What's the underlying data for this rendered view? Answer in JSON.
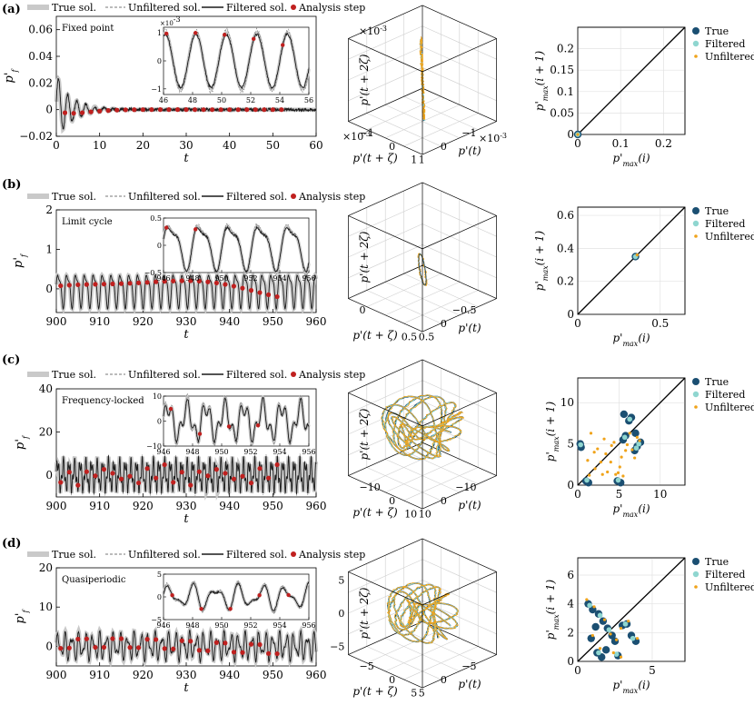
{
  "legend": {
    "true_sol": "True sol.",
    "unfiltered_sol": "Unfiltered sol.",
    "filtered_sol": "Filtered sol.",
    "analysis_step": "Analysis step"
  },
  "return_map_legend": {
    "true": "True",
    "filtered": "Filtered",
    "unfiltered": "Unfiltered"
  },
  "colors": {
    "true_band": "#c9c9c9",
    "filtered_line": "#1a1a1a",
    "unfiltered_line": "#777777",
    "analysis_dot": "#c0201f",
    "true_map": "#1b4f72",
    "filtered_map": "#8fd6d0",
    "unfiltered_map": "#f0a31a",
    "diagonal": "#000000"
  },
  "chart_data": [
    {
      "panel": "(a)",
      "type": "line",
      "annotation": "Fixed point",
      "title": "",
      "xlabel": "t",
      "ylabel": "p'_f",
      "xlim": [
        0,
        60
      ],
      "ylim": [
        -0.02,
        0.07
      ],
      "xticks": [
        "0",
        "10",
        "20",
        "30",
        "40",
        "50",
        "60"
      ],
      "yticks": [
        "-0.02",
        "0",
        "0.02",
        "0.04",
        "0.06"
      ],
      "signal": {
        "kind": "decay",
        "period": 2.1,
        "amplitude": 0.022,
        "decay_rate": 0.25,
        "offset": 0.0,
        "noise": 0.002
      },
      "analysis_steps_t": [
        2,
        4,
        6,
        8,
        10,
        12,
        14,
        16,
        18,
        20,
        22,
        24,
        26,
        28,
        30,
        32,
        34,
        36,
        38,
        40,
        42,
        44,
        46,
        48,
        50,
        52
      ],
      "inset": {
        "xlim": [
          46,
          56
        ],
        "ylim": [
          -1.2,
          1.2
        ],
        "xticks": [
          "46",
          "48",
          "50",
          "52",
          "54",
          "56"
        ],
        "yticks": [
          "-1",
          "0",
          "1"
        ],
        "multiplier": "×10^-3",
        "period": 2.1,
        "amplitude": 1.0,
        "analysis_steps_t": [
          46.2,
          48.2,
          50.2,
          52.2,
          54.2
        ]
      }
    },
    {
      "panel": "(b)",
      "type": "line",
      "annotation": "Limit cycle",
      "title": "",
      "xlabel": "t",
      "ylabel": "p'_f",
      "xlim": [
        900,
        960
      ],
      "ylim": [
        -0.6,
        2.0
      ],
      "xticks": [
        "900",
        "910",
        "920",
        "930",
        "940",
        "950",
        "960"
      ],
      "yticks": [
        "0",
        "1",
        "2"
      ],
      "signal": {
        "kind": "periodic",
        "period": 2.05,
        "amplitude": 0.38,
        "decay_rate": 0,
        "offset": 0.0,
        "noise": 0.01
      },
      "analysis_steps_t": [
        901,
        903,
        905,
        907,
        909,
        911,
        913,
        915,
        917,
        919,
        921,
        923,
        925,
        927,
        929,
        931,
        933,
        935,
        937,
        939,
        941,
        943,
        945,
        947,
        949,
        951
      ],
      "inset": {
        "xlim": [
          946,
          956
        ],
        "ylim": [
          -0.5,
          0.5
        ],
        "xticks": [
          "946",
          "948",
          "950",
          "952",
          "954",
          "956"
        ],
        "yticks": [
          "-0.5",
          "0",
          "0.5"
        ],
        "multiplier": "",
        "period": 2.05,
        "amplitude": 0.38,
        "analysis_steps_t": [
          946.2,
          948.2
        ]
      }
    },
    {
      "panel": "(c)",
      "type": "line",
      "annotation": "Frequency-locked",
      "title": "",
      "xlabel": "t",
      "ylabel": "p'_f",
      "xlim": [
        900,
        960
      ],
      "ylim": [
        -10,
        40
      ],
      "xticks": [
        "900",
        "910",
        "920",
        "930",
        "940",
        "950",
        "960"
      ],
      "yticks": [
        "0",
        "20",
        "40"
      ],
      "signal": {
        "kind": "locked",
        "period": 1.3,
        "amplitude": 5.5,
        "decay_rate": 0,
        "offset": 0.0,
        "noise": 1.2
      },
      "analysis_steps_t": [
        901,
        903,
        905,
        907,
        909,
        911,
        913,
        915,
        917,
        919,
        921,
        923,
        925,
        927,
        929,
        931,
        933,
        935,
        937,
        939,
        941,
        943,
        945,
        947,
        949,
        951
      ],
      "inset": {
        "xlim": [
          946,
          956
        ],
        "ylim": [
          -10,
          10
        ],
        "xticks": [
          "946",
          "948",
          "950",
          "952",
          "954",
          "956"
        ],
        "yticks": [
          "-10",
          "0",
          "10"
        ],
        "multiplier": "",
        "period": 1.3,
        "amplitude": 6.0,
        "analysis_steps_t": [
          946.5,
          948.5,
          950.5,
          952.5
        ]
      }
    },
    {
      "panel": "(d)",
      "type": "line",
      "annotation": "Quasiperiodic",
      "title": "",
      "xlabel": "t",
      "ylabel": "p'_f",
      "xlim": [
        900,
        960
      ],
      "ylim": [
        -5,
        20
      ],
      "xticks": [
        "900",
        "910",
        "920",
        "930",
        "940",
        "950",
        "960"
      ],
      "yticks": [
        "0",
        "10",
        "20"
      ],
      "signal": {
        "kind": "quasi",
        "period": 1.6,
        "amplitude": 2.6,
        "decay_rate": 0,
        "offset": 0.0,
        "noise": 0.6
      },
      "analysis_steps_t": [
        901,
        903,
        905,
        907,
        909,
        911,
        913,
        915,
        917,
        919,
        921,
        923,
        925,
        927,
        929,
        931,
        933,
        935,
        937,
        939,
        941,
        943,
        945,
        947,
        949,
        951
      ],
      "inset": {
        "xlim": [
          946,
          956
        ],
        "ylim": [
          -5,
          5
        ],
        "xticks": [
          "946",
          "948",
          "950",
          "952",
          "954",
          "956"
        ],
        "yticks": [
          "-5",
          "0",
          "5"
        ],
        "multiplier": "",
        "period": 1.6,
        "amplitude": 3.0,
        "analysis_steps_t": [
          946.6,
          948.6,
          950.6,
          952.6,
          954.6
        ]
      }
    },
    {
      "panel": "(a)",
      "type": "line3d",
      "title": "",
      "xlabel": "p'(t)",
      "ylabel": "p'(t + ζ)",
      "zlabel": "p'(t + 2ζ)",
      "multiplier_top": "×10^-3",
      "multiplier_left": "×10^-3",
      "multiplier_right": "×10^-3",
      "xticks": [
        "-1",
        "0",
        "1"
      ],
      "yticks": [
        "-1",
        "0",
        "1"
      ],
      "zticks": [],
      "attractor": "line",
      "scale": 1.0
    },
    {
      "panel": "(b)",
      "type": "line3d",
      "title": "",
      "xlabel": "p'(t)",
      "ylabel": "p'(t + ζ)",
      "zlabel": "p'(t + 2ζ)",
      "xticks": [
        "0",
        "0.5"
      ],
      "yticks": [
        "-0.5",
        "0",
        "0.5"
      ],
      "zticks": [],
      "attractor": "limit_cycle",
      "scale": 1.0
    },
    {
      "panel": "(c)",
      "type": "line3d",
      "title": "",
      "xlabel": "p'(t)",
      "ylabel": "p'(t + ζ)",
      "zlabel": "p'(t + 2ζ)",
      "xticks": [
        "-10",
        "0",
        "10"
      ],
      "yticks": [
        "-10",
        "0",
        "10"
      ],
      "zticks": [],
      "attractor": "torus",
      "scale": 1.0
    },
    {
      "panel": "(d)",
      "type": "line3d",
      "title": "",
      "xlabel": "p'(t)",
      "ylabel": "p'(t + ζ)",
      "zlabel": "p'(t + 2ζ)",
      "xticks": [
        "-5",
        "0",
        "5"
      ],
      "yticks": [
        "-5",
        "0",
        "5"
      ],
      "zticks": [
        "-5",
        "0",
        "5"
      ],
      "attractor": "quasi",
      "scale": 1.0
    },
    {
      "panel": "(a)",
      "type": "scatter",
      "title": "",
      "xlabel": "p'_max(i)",
      "ylabel": "p'_max(i + 1)",
      "xlim": [
        0,
        0.25
      ],
      "ylim": [
        0,
        0.25
      ],
      "xticks": [
        "0",
        "0.1",
        "0.2"
      ],
      "yticks": [
        "0",
        "0.05",
        "0.1",
        "0.15",
        "0.2"
      ],
      "series": [
        {
          "name": "True",
          "points": [
            [
              0.0,
              0.0
            ]
          ]
        },
        {
          "name": "Filtered",
          "points": [
            [
              0.0,
              0.0
            ]
          ]
        },
        {
          "name": "Unfiltered",
          "points": [
            [
              0.0,
              0.0
            ]
          ]
        }
      ]
    },
    {
      "panel": "(b)",
      "type": "scatter",
      "title": "",
      "xlabel": "p'_max(i)",
      "ylabel": "p'_max(i + 1)",
      "xlim": [
        0,
        0.65
      ],
      "ylim": [
        0,
        0.65
      ],
      "xticks": [
        "0",
        "0.5"
      ],
      "yticks": [
        "0",
        "0.2",
        "0.4",
        "0.6"
      ],
      "series": [
        {
          "name": "True",
          "points": [
            [
              0.35,
              0.35
            ]
          ]
        },
        {
          "name": "Filtered",
          "points": [
            [
              0.35,
              0.35
            ]
          ]
        },
        {
          "name": "Unfiltered",
          "points": [
            [
              0.36,
              0.36
            ]
          ]
        }
      ]
    },
    {
      "panel": "(c)",
      "type": "scatter",
      "title": "",
      "xlabel": "p'_max(i)",
      "ylabel": "p'_max(i + 1)",
      "xlim": [
        0,
        13
      ],
      "ylim": [
        0,
        13
      ],
      "xticks": [
        "0",
        "5",
        "10"
      ],
      "yticks": [
        "0",
        "5",
        "10"
      ],
      "series": [
        {
          "name": "True",
          "points": [
            [
              0.3,
              5.0
            ],
            [
              0.4,
              4.6
            ],
            [
              1.0,
              0.5
            ],
            [
              1.3,
              0.3
            ],
            [
              4.8,
              0.5
            ],
            [
              5.2,
              0.3
            ],
            [
              5.5,
              5.5
            ],
            [
              5.8,
              6.0
            ],
            [
              6.2,
              7.8
            ],
            [
              6.5,
              8.2
            ],
            [
              6.9,
              4.2
            ],
            [
              7.2,
              4.7
            ],
            [
              7.6,
              5.2
            ],
            [
              7.0,
              6.3
            ],
            [
              5.6,
              8.6
            ]
          ]
        },
        {
          "name": "Filtered",
          "points": [
            [
              0.35,
              4.9
            ],
            [
              1.1,
              0.6
            ],
            [
              4.9,
              0.6
            ],
            [
              5.7,
              5.8
            ],
            [
              6.3,
              8.0
            ],
            [
              7.1,
              4.5
            ],
            [
              7.4,
              5.0
            ]
          ]
        },
        {
          "name": "Unfiltered",
          "points": [
            [
              1.2,
              3.0
            ],
            [
              1.6,
              6.3
            ],
            [
              2.1,
              2.0
            ],
            [
              2.4,
              4.4
            ],
            [
              2.8,
              2.8
            ],
            [
              3.0,
              1.3
            ],
            [
              3.4,
              3.8
            ],
            [
              3.6,
              1.6
            ],
            [
              4.0,
              2.8
            ],
            [
              4.1,
              4.8
            ],
            [
              4.4,
              5.2
            ],
            [
              4.6,
              1.3
            ],
            [
              4.9,
              1.5
            ],
            [
              5.1,
              2.2
            ],
            [
              5.3,
              3.4
            ],
            [
              5.5,
              1.1
            ],
            [
              5.8,
              4.2
            ],
            [
              6.0,
              4.9
            ],
            [
              6.3,
              6.3
            ],
            [
              6.6,
              4.3
            ],
            [
              6.9,
              3.3
            ],
            [
              7.2,
              5.8
            ],
            [
              7.5,
              5.4
            ],
            [
              2.0,
              4.0
            ],
            [
              3.2,
              5.6
            ],
            [
              1.4,
              1.2
            ]
          ]
        }
      ]
    },
    {
      "panel": "(d)",
      "type": "scatter",
      "title": "",
      "xlabel": "p'_max(i)",
      "ylabel": "p'_max(i + 1)",
      "xlim": [
        0,
        7.2
      ],
      "ylim": [
        0,
        7.2
      ],
      "xticks": [
        "0",
        "5"
      ],
      "yticks": [
        "0",
        "2",
        "4",
        "6"
      ],
      "series": [
        {
          "name": "True",
          "points": [
            [
              0.7,
              4.0
            ],
            [
              1.0,
              3.6
            ],
            [
              1.4,
              3.3
            ],
            [
              1.7,
              2.8
            ],
            [
              2.0,
              2.3
            ],
            [
              2.3,
              1.8
            ],
            [
              2.5,
              1.4
            ],
            [
              3.3,
              2.6
            ],
            [
              3.0,
              2.5
            ],
            [
              3.6,
              1.8
            ],
            [
              3.9,
              1.4
            ],
            [
              1.3,
              0.6
            ],
            [
              1.9,
              0.8
            ],
            [
              2.7,
              0.4
            ],
            [
              1.6,
              0.3
            ],
            [
              0.9,
              1.6
            ],
            [
              1.2,
              2.4
            ]
          ]
        },
        {
          "name": "Filtered",
          "points": [
            [
              0.8,
              3.9
            ],
            [
              1.5,
              3.2
            ],
            [
              2.1,
              2.2
            ],
            [
              3.2,
              2.6
            ],
            [
              3.7,
              1.6
            ],
            [
              1.4,
              0.6
            ],
            [
              2.6,
              0.5
            ]
          ]
        },
        {
          "name": "Unfiltered",
          "points": [
            [
              0.6,
              4.3
            ],
            [
              1.1,
              3.8
            ],
            [
              1.8,
              2.9
            ],
            [
              2.2,
              1.9
            ],
            [
              2.9,
              2.3
            ],
            [
              3.4,
              2.8
            ],
            [
              4.0,
              1.6
            ],
            [
              1.5,
              0.9
            ],
            [
              2.4,
              0.6
            ],
            [
              2.9,
              0.3
            ],
            [
              1.0,
              1.8
            ],
            [
              2.6,
              1.5
            ]
          ]
        }
      ]
    }
  ]
}
